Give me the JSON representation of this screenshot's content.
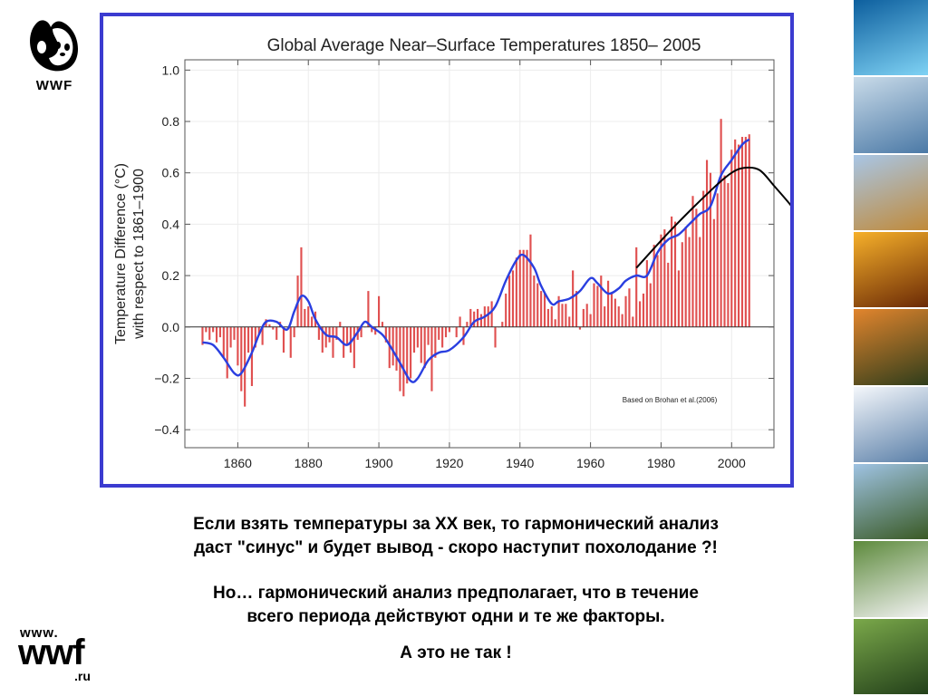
{
  "logo_top": {
    "text": "WWF"
  },
  "logo_bottom": {
    "line1": "www.",
    "line2": "wwf",
    "line3": ".ru"
  },
  "captions": {
    "p1_line1": "Если взять температуры за XX век, то гармонический анализ",
    "p1_line2": "даст \"синус\" и будет вывод - скоро наступит похолодание ?!",
    "p2_line1": "Но…  гармонический анализ предполагает, что в течение",
    "p2_line2": "всего периода действуют одни и те же факторы.",
    "p3": "А это не так !"
  },
  "strip_tiles": [
    {
      "name": "underwater-sun-photo",
      "colors": [
        "#0d5f9e",
        "#7fd2f4"
      ]
    },
    {
      "name": "fox-snow-photo",
      "colors": [
        "#c9dbe9",
        "#4b79a6"
      ]
    },
    {
      "name": "mountains-lake-photo",
      "colors": [
        "#a8c6e6",
        "#c08a3a"
      ]
    },
    {
      "name": "sunset-grass-photo",
      "colors": [
        "#f6b02a",
        "#6b2a06"
      ]
    },
    {
      "name": "tiger-photo",
      "colors": [
        "#e2852d",
        "#2f3d1b"
      ]
    },
    {
      "name": "snowy-forest-photo",
      "colors": [
        "#f4f7fb",
        "#5a7fa8"
      ]
    },
    {
      "name": "mountain-lake-photo",
      "colors": [
        "#9fc3e3",
        "#3a5a25"
      ]
    },
    {
      "name": "crane-bird-photo",
      "colors": [
        "#5d8a3c",
        "#f2f2f2"
      ]
    },
    {
      "name": "forest-river-photo",
      "colors": [
        "#7aa84a",
        "#23401a"
      ]
    }
  ],
  "chart_data": {
    "type": "bar",
    "title": "Global Average Near–Surface Temperatures 1850– 2005",
    "ylabel_line1": "Temperature Difference (°C)",
    "ylabel_line2": "with respect to 1861–1900",
    "source_note": "Based on Brohan et al.(2006)",
    "xlim": [
      1845,
      2012
    ],
    "ylim": [
      -0.47,
      1.04
    ],
    "x_ticks": [
      1860,
      1880,
      1900,
      1920,
      1940,
      1960,
      1980,
      2000
    ],
    "x_tick_labels": [
      "1860",
      "1880",
      "1900",
      "1920",
      "1940",
      "1960",
      "1980",
      "2000"
    ],
    "y_ticks": [
      -0.4,
      -0.2,
      0.0,
      0.2,
      0.4,
      0.6,
      0.8,
      1.0
    ],
    "y_tick_labels": [
      "−0.4",
      "−0.2",
      "0.0",
      "0.2",
      "0.4",
      "0.6",
      "0.8",
      "1.0"
    ],
    "bar_color": "#e05050",
    "smooth_color": "#2a3fe0",
    "arrow_color": "#000000",
    "years_start": 1850,
    "annual_values": [
      -0.07,
      -0.02,
      -0.05,
      -0.02,
      -0.06,
      -0.04,
      -0.12,
      -0.2,
      -0.08,
      -0.05,
      -0.15,
      -0.25,
      -0.31,
      -0.1,
      -0.23,
      -0.08,
      -0.03,
      -0.07,
      0.03,
      0.01,
      -0.01,
      -0.05,
      0.02,
      -0.1,
      0.0,
      -0.12,
      -0.04,
      0.2,
      0.31,
      0.07,
      0.08,
      0.04,
      0.06,
      -0.05,
      -0.1,
      -0.08,
      -0.06,
      -0.12,
      -0.05,
      0.02,
      -0.12,
      -0.07,
      -0.1,
      -0.16,
      -0.05,
      -0.04,
      0.0,
      0.14,
      -0.02,
      -0.03,
      0.12,
      0.02,
      -0.06,
      -0.16,
      -0.15,
      -0.17,
      -0.25,
      -0.27,
      -0.22,
      -0.2,
      -0.1,
      -0.08,
      -0.14,
      -0.16,
      -0.07,
      -0.25,
      -0.12,
      -0.05,
      -0.08,
      -0.04,
      -0.02,
      0.0,
      -0.04,
      0.04,
      -0.07,
      0.02,
      0.07,
      0.06,
      0.07,
      0.05,
      0.08,
      0.08,
      0.1,
      -0.08,
      0.0,
      0.02,
      0.13,
      0.2,
      0.22,
      0.27,
      0.3,
      0.3,
      0.3,
      0.36,
      0.2,
      0.17,
      0.14,
      0.13,
      0.07,
      0.08,
      0.03,
      0.12,
      0.09,
      0.09,
      0.04,
      0.22,
      0.14,
      -0.01,
      0.07,
      0.09,
      0.05,
      0.17,
      0.16,
      0.2,
      0.08,
      0.18,
      0.13,
      0.11,
      0.08,
      0.05,
      0.12,
      0.15,
      0.04,
      0.31,
      0.1,
      0.13,
      0.26,
      0.17,
      0.32,
      0.28,
      0.36,
      0.38,
      0.25,
      0.43,
      0.41,
      0.22,
      0.33,
      0.39,
      0.35,
      0.51,
      0.46,
      0.35,
      0.53,
      0.65,
      0.6,
      0.42,
      0.52,
      0.81,
      0.59,
      0.56,
      0.69,
      0.73,
      0.71,
      0.74,
      0.74,
      0.75
    ],
    "smoothed": [
      [
        1850,
        -0.06
      ],
      [
        1853,
        -0.07
      ],
      [
        1856,
        -0.12
      ],
      [
        1859,
        -0.18
      ],
      [
        1861,
        -0.18
      ],
      [
        1864,
        -0.1
      ],
      [
        1866,
        -0.03
      ],
      [
        1868,
        0.02
      ],
      [
        1871,
        0.02
      ],
      [
        1874,
        -0.01
      ],
      [
        1876,
        0.06
      ],
      [
        1878,
        0.12
      ],
      [
        1880,
        0.1
      ],
      [
        1882,
        0.03
      ],
      [
        1885,
        -0.03
      ],
      [
        1888,
        -0.04
      ],
      [
        1891,
        -0.07
      ],
      [
        1894,
        -0.02
      ],
      [
        1896,
        0.02
      ],
      [
        1898,
        0.0
      ],
      [
        1901,
        -0.03
      ],
      [
        1903,
        -0.07
      ],
      [
        1906,
        -0.14
      ],
      [
        1909,
        -0.21
      ],
      [
        1911,
        -0.2
      ],
      [
        1914,
        -0.13
      ],
      [
        1917,
        -0.1
      ],
      [
        1920,
        -0.09
      ],
      [
        1924,
        -0.04
      ],
      [
        1927,
        0.02
      ],
      [
        1930,
        0.04
      ],
      [
        1933,
        0.08
      ],
      [
        1936,
        0.18
      ],
      [
        1939,
        0.26
      ],
      [
        1941,
        0.28
      ],
      [
        1944,
        0.23
      ],
      [
        1946,
        0.16
      ],
      [
        1949,
        0.09
      ],
      [
        1951,
        0.1
      ],
      [
        1954,
        0.11
      ],
      [
        1957,
        0.14
      ],
      [
        1960,
        0.19
      ],
      [
        1962,
        0.17
      ],
      [
        1965,
        0.13
      ],
      [
        1968,
        0.15
      ],
      [
        1970,
        0.18
      ],
      [
        1973,
        0.2
      ],
      [
        1976,
        0.2
      ],
      [
        1979,
        0.29
      ],
      [
        1982,
        0.34
      ],
      [
        1985,
        0.36
      ],
      [
        1988,
        0.4
      ],
      [
        1991,
        0.44
      ],
      [
        1994,
        0.47
      ],
      [
        1997,
        0.59
      ],
      [
        2000,
        0.65
      ],
      [
        2003,
        0.71
      ],
      [
        2005,
        0.73
      ]
    ],
    "annotation_arrow": [
      [
        1973,
        0.23
      ],
      [
        1983,
        0.38
      ],
      [
        1994,
        0.53
      ],
      [
        2000,
        0.6
      ],
      [
        2004,
        0.62
      ],
      [
        2008,
        0.61
      ],
      [
        2012,
        0.55
      ],
      [
        2017,
        0.47
      ],
      [
        2020,
        0.41
      ]
    ]
  }
}
